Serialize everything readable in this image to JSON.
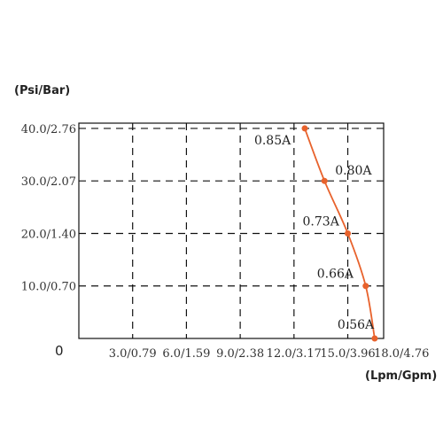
{
  "chart_data": {
    "type": "line",
    "x_tick_labels": [
      "3.0/0.79",
      "6.0/1.59",
      "9.0/2.38",
      "12.0/3.17",
      "15.0/3.96",
      "18.0/4.76"
    ],
    "x_ticks": [
      3,
      6,
      9,
      12,
      15,
      18
    ],
    "y_tick_labels": [
      "10.0/0.70",
      "20.0/1.40",
      "30.0/2.07",
      "40.0/2.76"
    ],
    "y_ticks": [
      10,
      20,
      30,
      40
    ],
    "origin_label": "0",
    "xlabel": "(Lpm/Gpm)",
    "ylabel": "(Psi/Bar)",
    "xlim": [
      0,
      17
    ],
    "ylim": [
      0,
      41
    ],
    "grid": true,
    "series": [
      {
        "color": "#e8622c",
        "x": [
          12.6,
          13.7,
          15.0,
          16.0,
          16.5
        ],
        "y": [
          40.0,
          30.0,
          20.0,
          10.0,
          0.0
        ],
        "point_labels": [
          "0.85A",
          "0.80A",
          "0.73A",
          "0.66A",
          "0.56A"
        ]
      }
    ]
  }
}
